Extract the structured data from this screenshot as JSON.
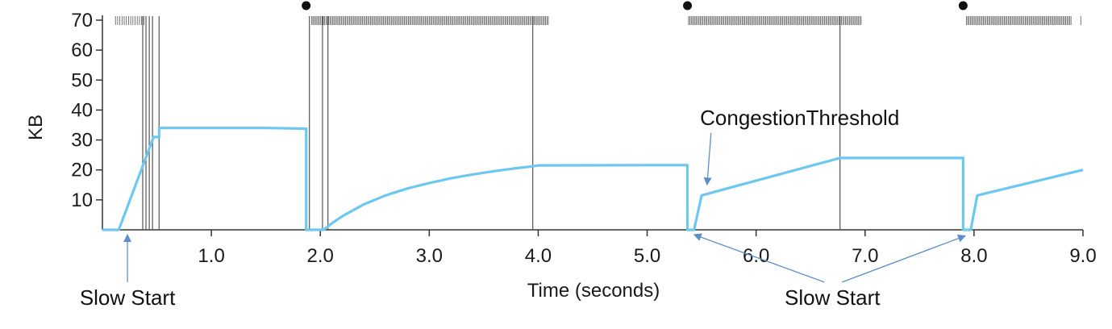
{
  "chart_data": {
    "type": "line",
    "xlabel": "Time (seconds)",
    "ylabel": "KB",
    "xlim": [
      0,
      9.0
    ],
    "ylim": [
      0,
      70
    ],
    "x_ticks": [
      "1.0",
      "2.0",
      "3.0",
      "4.0",
      "5.0",
      "6.0",
      "7.0",
      "8.0",
      "9.0"
    ],
    "y_ticks": [
      "10",
      "20",
      "30",
      "40",
      "50",
      "60",
      "70"
    ],
    "grid": false,
    "colors": {
      "line": "#6cc8ef",
      "axis": "#333333",
      "arrow": "#5b8fc6",
      "marks": "#555555"
    },
    "series": [
      {
        "points": [
          [
            0.0,
            0
          ],
          [
            0.15,
            0
          ],
          [
            0.47,
            31
          ],
          [
            0.52,
            31
          ],
          [
            0.52,
            34
          ],
          [
            1.0,
            34
          ],
          [
            1.5,
            34
          ],
          [
            1.86,
            33.8
          ],
          [
            1.87,
            33.8
          ],
          [
            1.87,
            0
          ],
          [
            2.03,
            0
          ],
          [
            2.1,
            2
          ],
          [
            2.2,
            4.5
          ],
          [
            2.4,
            8.5
          ],
          [
            2.6,
            11.5
          ],
          [
            2.8,
            13.8
          ],
          [
            3.0,
            15.6
          ],
          [
            3.2,
            17.2
          ],
          [
            3.4,
            18.5
          ],
          [
            3.6,
            19.6
          ],
          [
            3.8,
            20.6
          ],
          [
            3.95,
            21.2
          ],
          [
            4.0,
            21.5
          ],
          [
            5.0,
            21.6
          ],
          [
            5.37,
            21.6
          ],
          [
            5.37,
            0
          ],
          [
            5.43,
            0
          ],
          [
            5.5,
            11.5
          ],
          [
            6.77,
            24
          ],
          [
            7.9,
            24
          ],
          [
            7.9,
            0
          ],
          [
            7.97,
            0
          ],
          [
            8.03,
            11.5
          ],
          [
            9.0,
            20
          ]
        ]
      }
    ],
    "timeouts": [
      0.37,
      0.4,
      0.43,
      0.46,
      0.52,
      1.9,
      2.02,
      2.07,
      3.95,
      6.77
    ],
    "dots": [
      1.87,
      5.37,
      7.9
    ],
    "packet_ticks": [
      {
        "start": 0.12,
        "end": 0.38,
        "spacing": 0.02
      },
      {
        "start": 1.92,
        "end": 4.1,
        "spacing": 0.012
      },
      {
        "start": 5.38,
        "end": 6.97,
        "spacing": 0.012
      },
      {
        "start": 7.93,
        "end": 8.9,
        "spacing": 0.012
      },
      {
        "start": 8.98,
        "end": 8.98,
        "spacing": 0.1
      }
    ],
    "annotations": [
      {
        "text": "Slow Start",
        "x": 0.23,
        "y": -25,
        "target_x": 0.23,
        "target_y": 0
      },
      {
        "text": "CongestionThreshold",
        "x": 6.4,
        "y": 35,
        "target_x": 5.55,
        "target_y": 15
      },
      {
        "text": "Slow Start",
        "x": 6.7,
        "y": -25,
        "target_x": 5.43,
        "target_y": 0
      },
      {
        "text": "",
        "x": 6.7,
        "y": -25,
        "target_x": 7.92,
        "target_y": -2
      }
    ]
  }
}
